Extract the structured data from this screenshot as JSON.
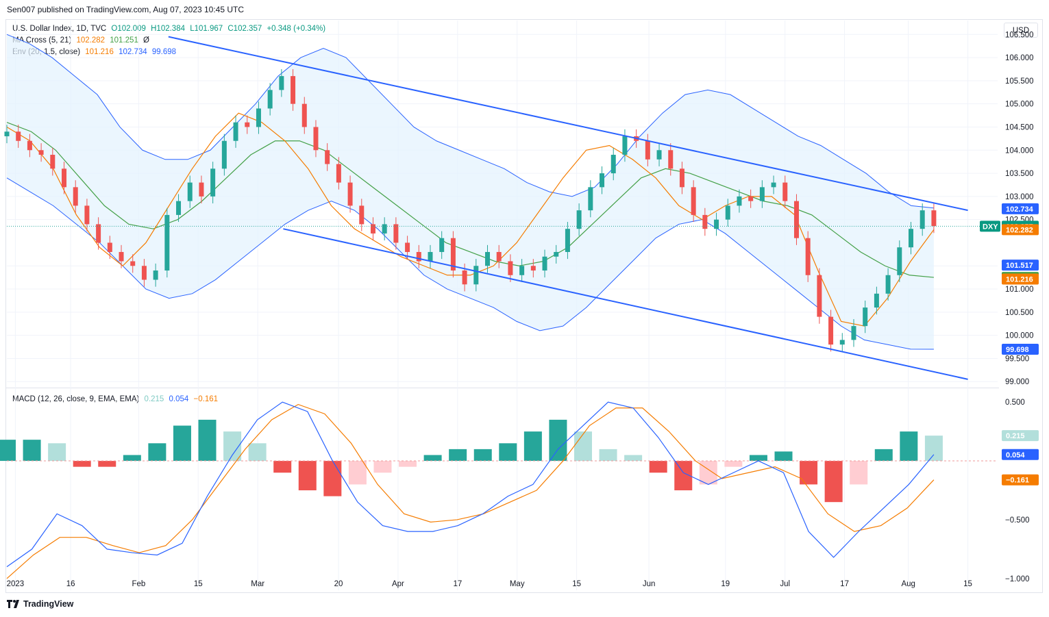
{
  "publisher_line": "Sen007 published on TradingView.com, Aug 07, 2023 10:45 UTC",
  "currency_button": "USD",
  "brand": "TradingView",
  "legend": {
    "main": {
      "name": "U.S. Dollar Index, 1D, TVC",
      "o": "O102.009",
      "h": "H102.384",
      "l": "L101.967",
      "c": "C102.357",
      "chg": "+0.348 (+0.34%)"
    },
    "ma": {
      "name": "MA Cross (5, 21)",
      "v1": "102.282",
      "v2": "101.251",
      "flag": "Ø"
    },
    "env": {
      "name": "Env (20, 1.5, close)",
      "v1": "101.216",
      "v2": "102.734",
      "v3": "99.698"
    },
    "macd": {
      "name": "MACD (12, 26, close, 9, EMA, EMA)",
      "v1": "0.215",
      "v2": "0.054",
      "v3": "−0.161"
    }
  },
  "price_axis": [
    "106.500",
    "106.000",
    "105.500",
    "105.000",
    "104.500",
    "104.000",
    "103.500",
    "103.000",
    "102.500",
    "101.500",
    "101.000",
    "100.500",
    "100.000",
    "99.500",
    "99.000"
  ],
  "macd_axis": [
    "0.500",
    "−0.500",
    "−1.000"
  ],
  "x_axis": [
    "2023",
    "16",
    "Feb",
    "15",
    "Mar",
    "20",
    "Apr",
    "17",
    "May",
    "15",
    "Jun",
    "19",
    "Jul",
    "17",
    "Aug",
    "15"
  ],
  "price_tags": [
    {
      "text": "102.734",
      "value": 102.734,
      "color": "#2962ff"
    },
    {
      "text": "102.357",
      "value": 102.357,
      "color": "#089981",
      "label": "DXY"
    },
    {
      "text": "102.282",
      "value": 102.282,
      "color": "#f57c00"
    },
    {
      "text": "101.517",
      "value": 101.517,
      "color": "#2962ff"
    },
    {
      "text": "101.251",
      "value": 101.251,
      "color": "#43a047"
    },
    {
      "text": "101.216",
      "value": 101.216,
      "color": "#f57c00"
    },
    {
      "text": "99.698",
      "value": 99.698,
      "color": "#2962ff"
    }
  ],
  "macd_tags": [
    {
      "text": "0.215",
      "value": 0.215,
      "color": "#b2dfdb",
      "fg": "#131722"
    },
    {
      "text": "0.054",
      "value": 0.054,
      "color": "#2962ff",
      "fg": "#ffffff"
    },
    {
      "text": "−0.161",
      "value": -0.161,
      "color": "#f57c00",
      "fg": "#ffffff"
    }
  ],
  "colors": {
    "up": "#26a69a",
    "down": "#ef5350",
    "env_line": "#2962ff",
    "env_fill": "#e3f2fd",
    "ma_fast": "#f57c00",
    "ma_slow": "#43a047",
    "macd": "#2962ff",
    "signal": "#f57c00",
    "channel": "#2962ff"
  },
  "chart_data": {
    "type": "candlestick",
    "price_ylim": [
      98.9,
      106.8
    ],
    "x_dates": [
      "2023-01-03",
      "2023-01-16",
      "2023-02-01",
      "2023-02-15",
      "2023-03-01",
      "2023-03-20",
      "2023-04-03",
      "2023-04-17",
      "2023-05-01",
      "2023-05-15",
      "2023-06-01",
      "2023-06-19",
      "2023-07-03",
      "2023-07-17",
      "2023-08-01",
      "2023-08-15"
    ],
    "closes": [
      104.4,
      104.2,
      104.0,
      103.9,
      103.6,
      103.2,
      102.8,
      102.4,
      102.0,
      101.8,
      101.6,
      101.5,
      101.2,
      101.4,
      102.6,
      102.9,
      103.3,
      103.0,
      103.6,
      104.2,
      104.6,
      104.5,
      104.9,
      105.3,
      105.6,
      105.0,
      104.5,
      104.0,
      103.7,
      103.3,
      102.8,
      102.4,
      102.2,
      102.4,
      102.0,
      101.8,
      101.6,
      101.8,
      102.1,
      101.4,
      101.1,
      101.5,
      101.8,
      101.6,
      101.3,
      101.5,
      101.4,
      101.7,
      101.8,
      102.3,
      102.7,
      103.2,
      103.5,
      103.9,
      104.3,
      104.2,
      103.8,
      104.0,
      103.6,
      103.2,
      102.6,
      102.3,
      102.5,
      102.8,
      103.0,
      102.9,
      103.2,
      103.3,
      102.9,
      102.1,
      101.3,
      100.4,
      99.8,
      99.9,
      100.2,
      100.6,
      100.9,
      101.3,
      101.9,
      102.3,
      102.7,
      102.36
    ],
    "env_upper": [
      106.5,
      106.3,
      106.0,
      105.6,
      105.2,
      104.5,
      104.0,
      103.8,
      103.8,
      104.0,
      104.5,
      105.0,
      105.6,
      106.0,
      106.2,
      106.0,
      105.5,
      105.0,
      104.5,
      104.2,
      104.0,
      103.8,
      103.6,
      103.3,
      103.1,
      103.0,
      103.2,
      103.7,
      104.3,
      104.8,
      105.2,
      105.3,
      105.2,
      104.9,
      104.6,
      104.3,
      104.1,
      103.8,
      103.5,
      103.1,
      102.8,
      102.75
    ],
    "env_lower": [
      103.4,
      103.1,
      102.8,
      102.4,
      102.0,
      101.5,
      101.0,
      100.8,
      100.9,
      101.2,
      101.6,
      102.0,
      102.4,
      102.7,
      102.9,
      102.7,
      102.3,
      101.8,
      101.3,
      101.0,
      100.8,
      100.6,
      100.3,
      100.1,
      100.2,
      100.6,
      101.1,
      101.6,
      102.1,
      102.4,
      102.5,
      102.2,
      101.8,
      101.4,
      101.0,
      100.6,
      100.2,
      99.9,
      99.8,
      99.7,
      99.698
    ],
    "ma_fast": [
      104.5,
      104.2,
      103.6,
      102.6,
      101.9,
      101.5,
      102.0,
      102.8,
      103.6,
      104.3,
      104.8,
      104.6,
      104.2,
      103.6,
      102.8,
      102.3,
      102.0,
      101.7,
      101.5,
      101.3,
      101.3,
      101.5,
      102.0,
      102.7,
      103.4,
      104.0,
      104.1,
      103.8,
      103.4,
      102.8,
      102.5,
      102.8,
      103.0,
      103.0,
      102.6,
      101.4,
      100.3,
      100.2,
      100.8,
      101.6,
      102.282
    ],
    "ma_slow": [
      104.6,
      104.4,
      104.0,
      103.4,
      102.8,
      102.4,
      102.3,
      102.5,
      102.9,
      103.4,
      103.9,
      104.2,
      104.2,
      104.0,
      103.6,
      103.2,
      102.8,
      102.4,
      102.0,
      101.8,
      101.6,
      101.5,
      101.6,
      101.9,
      102.4,
      102.9,
      103.4,
      103.6,
      103.5,
      103.3,
      103.1,
      102.9,
      102.8,
      102.6,
      102.2,
      101.8,
      101.5,
      101.3,
      101.251
    ],
    "channel_upper": {
      "start": [
        "2023-02-08",
        106.45
      ],
      "end": [
        "2023-08-15",
        102.7
      ]
    },
    "channel_lower": {
      "start": [
        "2023-03-07",
        102.3
      ],
      "end": [
        "2023-08-15",
        99.05
      ]
    },
    "macd_ylim": [
      -1.1,
      0.6
    ],
    "macd_line": [
      -0.9,
      -0.75,
      -0.45,
      -0.55,
      -0.75,
      -0.78,
      -0.8,
      -0.7,
      -0.3,
      0.05,
      0.35,
      0.5,
      0.42,
      0.0,
      -0.35,
      -0.55,
      -0.6,
      -0.6,
      -0.55,
      -0.45,
      -0.3,
      -0.2,
      0.1,
      0.3,
      0.5,
      0.45,
      0.2,
      -0.1,
      -0.2,
      -0.1,
      0.0,
      -0.1,
      -0.6,
      -0.82,
      -0.6,
      -0.4,
      -0.2,
      0.054
    ],
    "signal_line": [
      -1.0,
      -0.8,
      -0.65,
      -0.65,
      -0.72,
      -0.78,
      -0.72,
      -0.5,
      -0.2,
      0.1,
      0.35,
      0.48,
      0.4,
      0.15,
      -0.2,
      -0.45,
      -0.52,
      -0.5,
      -0.45,
      -0.35,
      -0.25,
      0.0,
      0.3,
      0.45,
      0.45,
      0.25,
      0.0,
      -0.15,
      -0.1,
      -0.05,
      -0.15,
      -0.45,
      -0.6,
      -0.55,
      -0.4,
      -0.161
    ],
    "histogram": [
      0.18,
      0.18,
      0.15,
      -0.05,
      -0.05,
      0.05,
      0.15,
      0.3,
      0.35,
      0.25,
      0.15,
      -0.1,
      -0.25,
      -0.3,
      -0.2,
      -0.1,
      -0.05,
      0.05,
      0.1,
      0.1,
      0.15,
      0.25,
      0.35,
      0.25,
      0.1,
      0.05,
      -0.1,
      -0.25,
      -0.2,
      -0.05,
      0.05,
      0.08,
      -0.2,
      -0.35,
      -0.2,
      0.1,
      0.25,
      0.215
    ]
  }
}
